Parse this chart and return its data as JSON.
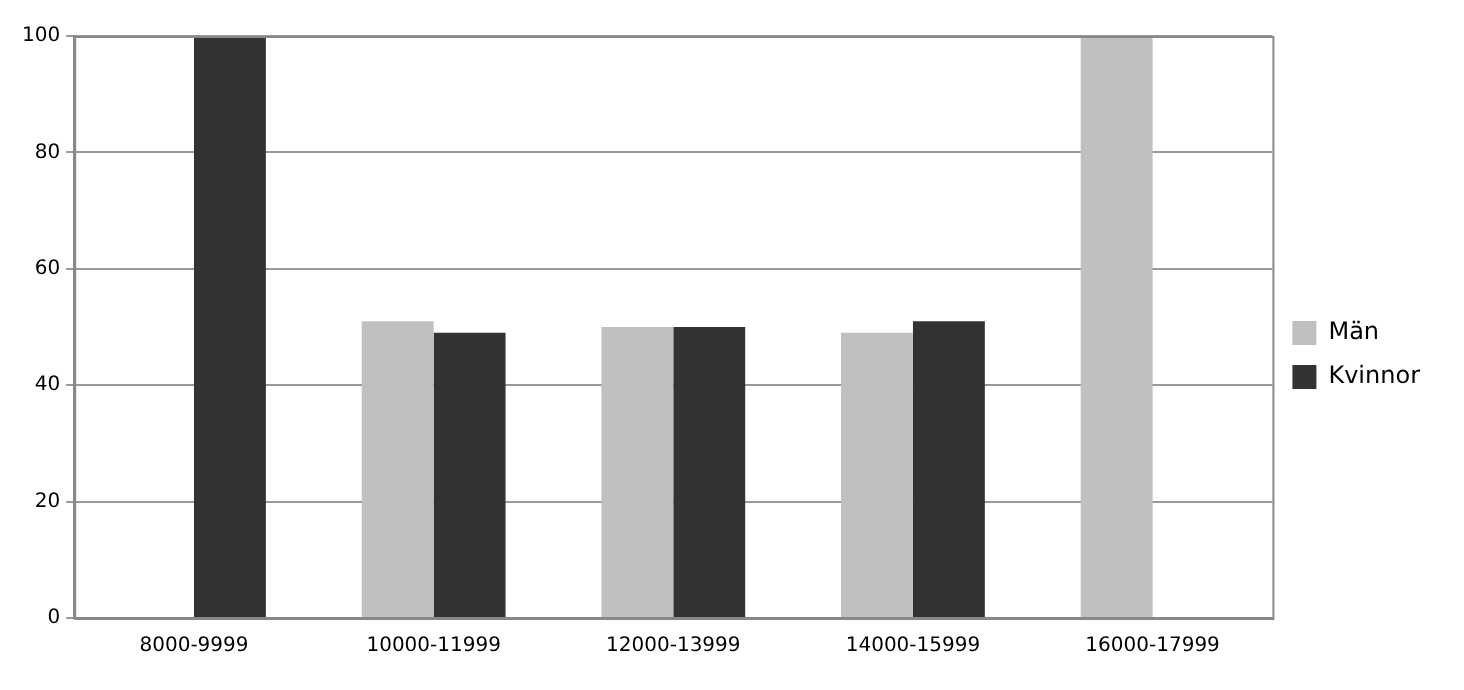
{
  "chart_data": {
    "type": "bar",
    "categories": [
      "8000-9999",
      "10000-11999",
      "12000-13999",
      "14000-15999",
      "16000-17999"
    ],
    "series": [
      {
        "name": "Män",
        "color": "#c0c0c0",
        "values": [
          0,
          51,
          50,
          49,
          100
        ]
      },
      {
        "name": "Kvinnor",
        "color": "#333333",
        "values": [
          100,
          49,
          50,
          51,
          0
        ]
      }
    ],
    "ylim": [
      0,
      100
    ],
    "yticks": [
      0,
      20,
      40,
      60,
      80,
      100
    ],
    "grid": "y",
    "legend": "right"
  }
}
